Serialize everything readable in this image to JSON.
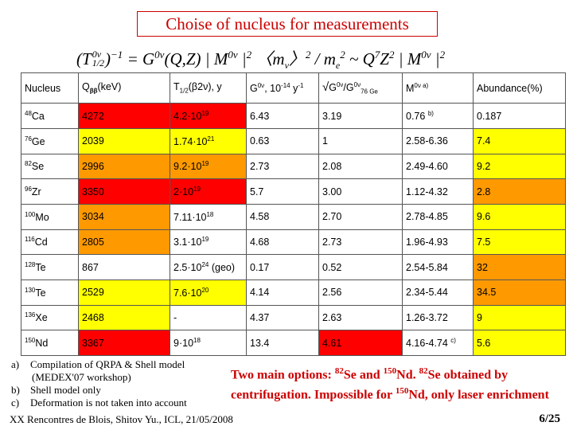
{
  "title": "Choise of nucleus for measurements",
  "formula": "(T⁰ᵛ₁/₂)⁻¹ = G⁰ᵛ(Q,Z) | M⁰ᵛ |² 〈mᵥ〉² / mₑ² ~ Q⁷Z² | M⁰ᵛ |²",
  "headers": [
    "Nucleus",
    "Qββ(keV)",
    "T1/2(β2ν), y",
    "G0ν, 10-14 y-1",
    "√G0ν/G0ν76 Ge",
    "M0ν a)",
    "Abundance(%)"
  ],
  "rows": [
    {
      "mass": "48",
      "el": "Ca",
      "q": "4272",
      "t": "4.2·10",
      "te": "19",
      "g": "6.43",
      "r": "3.19",
      "m": "0.76",
      "mn": "b)",
      "a": "0.187"
    },
    {
      "mass": "76",
      "el": "Ge",
      "q": "2039",
      "t": "1.74·10",
      "te": "21",
      "g": "0.63",
      "r": "1",
      "m": "2.58-6.36",
      "mn": "",
      "a": "7.4"
    },
    {
      "mass": "82",
      "el": "Se",
      "q": "2996",
      "t": "9.2·10",
      "te": "19",
      "g": "2.73",
      "r": "2.08",
      "m": "2.49-4.60",
      "mn": "",
      "a": "9.2"
    },
    {
      "mass": "96",
      "el": "Zr",
      "q": "3350",
      "t": "2·10",
      "te": "19",
      "g": "5.7",
      "r": "3.00",
      "m": "1.12-4.32",
      "mn": "",
      "a": "2.8"
    },
    {
      "mass": "100",
      "el": "Mo",
      "q": "3034",
      "t": "7.11·10",
      "te": "18",
      "g": "4.58",
      "r": "2.70",
      "m": "2.78-4.85",
      "mn": "",
      "a": "9.6"
    },
    {
      "mass": "116",
      "el": "Cd",
      "q": "2805",
      "t": "3.1·10",
      "te": "19",
      "g": "4.68",
      "r": "2.73",
      "m": "1.96-4.93",
      "mn": "",
      "a": "7.5"
    },
    {
      "mass": "128",
      "el": "Te",
      "q": "867",
      "t": "2.5·10",
      "te": "24",
      "ts": " (geo)",
      "g": "0.17",
      "r": "0.52",
      "m": "2.54-5.84",
      "mn": "",
      "a": "32"
    },
    {
      "mass": "130",
      "el": "Te",
      "q": "2529",
      "t": "7.6·10",
      "te": "20",
      "g": "4.14",
      "r": "2.56",
      "m": "2.34-5.44",
      "mn": "",
      "a": "34.5"
    },
    {
      "mass": "136",
      "el": "Xe",
      "q": "2468",
      "t": "-",
      "te": "",
      "g": "4.37",
      "r": "2.63",
      "m": "1.26-3.72",
      "mn": "",
      "a": "9"
    },
    {
      "mass": "150",
      "el": "Nd",
      "q": "3367",
      "t": "9·10",
      "te": "18",
      "g": "13.4",
      "r": "4.61",
      "m": "4.16-4.74",
      "mn": "c)",
      "a": "5.6"
    }
  ],
  "cell_colors": {
    "red": "#ff0000",
    "yellow": "#ffff00",
    "orange": "#ff9900",
    "white": "#ffffff"
  },
  "notes": [
    {
      "label": "a)",
      "text": "Compilation of QRPA & Shell model"
    },
    {
      "label": "",
      "text": "(MEDEX'07 workshop)"
    },
    {
      "label": "b)",
      "text": "Shell model only"
    },
    {
      "label": "c)",
      "text": "Deformation is not taken into account"
    }
  ],
  "options_text": "Two main options: 82Se and 150Nd. 82Se obtained by centrifugation. Impossible for 150Nd, only laser enrichment",
  "footer": "XX Rencontres de Blois, Shitov Yu., ICL, 21/05/2008",
  "page": "6/25"
}
